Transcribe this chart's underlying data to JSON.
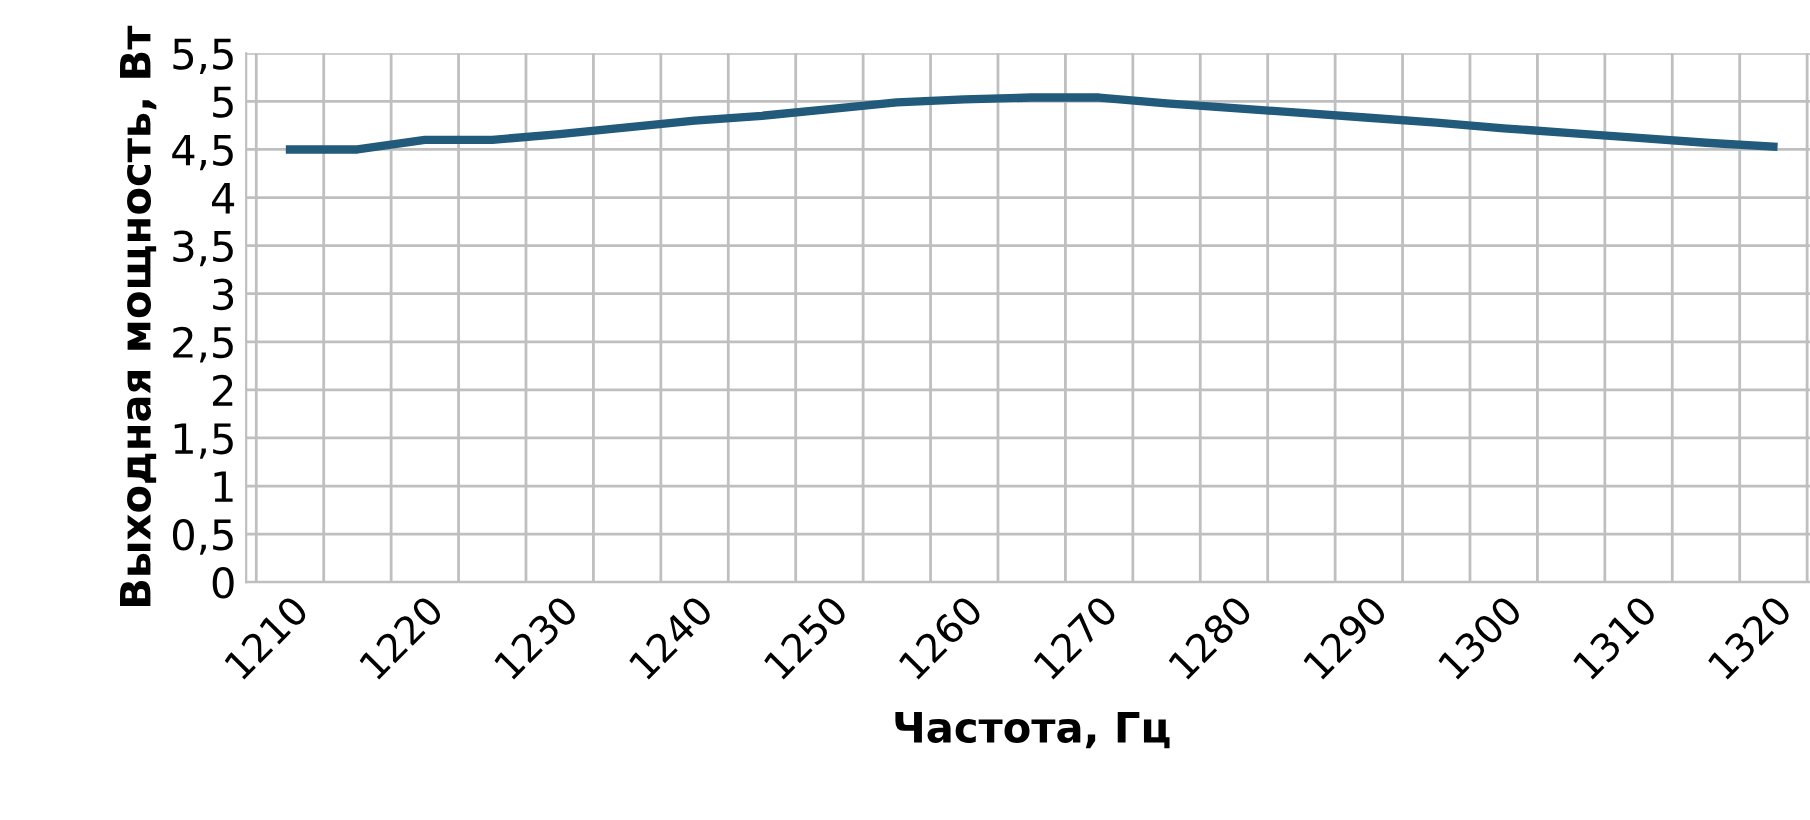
{
  "chart_data": {
    "type": "line",
    "xlabel": "Частота, Гц",
    "ylabel": "Выходная мощность, Вт",
    "categories": [
      "1210",
      null,
      "1220",
      null,
      "1230",
      null,
      "1240",
      null,
      "1250",
      null,
      "1260",
      null,
      "1270",
      null,
      "1280",
      null,
      "1290",
      null,
      "1300",
      null,
      "1310",
      null,
      "1320"
    ],
    "series": [
      {
        "color": "#215a7a",
        "values": [
          4.5,
          4.5,
          4.6,
          4.6,
          4.66,
          4.73,
          4.8,
          4.85,
          4.92,
          4.99,
          5.02,
          5.04,
          5.04,
          4.98,
          4.93,
          4.88,
          4.83,
          4.78,
          4.72,
          4.67,
          4.62,
          4.57,
          4.53
        ]
      }
    ],
    "ylim": [
      0,
      5.5
    ],
    "yticks": [
      0,
      {
        "value": 0.5,
        "label": "0,5"
      },
      1,
      {
        "value": 1.5,
        "label": "1,5"
      },
      2,
      {
        "value": 2.5,
        "label": "2,5"
      },
      3,
      {
        "value": 3.5,
        "label": "3,5"
      },
      4,
      {
        "value": 4.5,
        "label": "4,5"
      },
      5,
      {
        "value": 5.5,
        "label": "5,5"
      }
    ],
    "grid": true,
    "marker": "none",
    "line_style": "solid"
  }
}
